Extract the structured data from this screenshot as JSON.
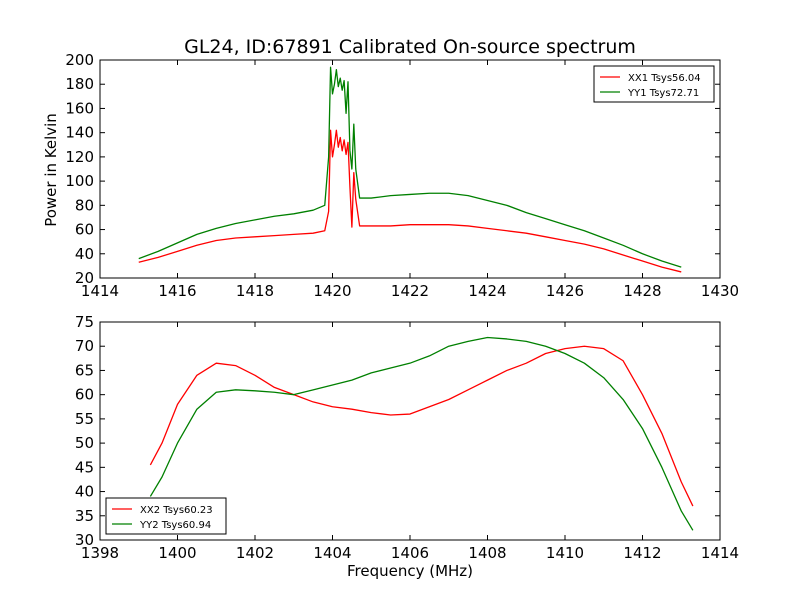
{
  "chart_data": [
    {
      "type": "line",
      "title": "GL24, ID:67891 Calibrated On-source spectrum",
      "xlabel": "",
      "ylabel": "Power in Kelvin",
      "xlim": [
        1414,
        1430
      ],
      "ylim": [
        20,
        200
      ],
      "xticks": [
        "1414",
        "1416",
        "1418",
        "1420",
        "1422",
        "1424",
        "1426",
        "1428",
        "1430"
      ],
      "yticks": [
        "20",
        "40",
        "60",
        "80",
        "100",
        "120",
        "140",
        "160",
        "180",
        "200"
      ],
      "legend_position": "top-right",
      "series": [
        {
          "name": "XX1 Tsys56.04",
          "color": "#ff0000",
          "points": [
            [
              1415.0,
              33
            ],
            [
              1415.5,
              37
            ],
            [
              1416.0,
              42
            ],
            [
              1416.5,
              47
            ],
            [
              1417.0,
              51
            ],
            [
              1417.5,
              53
            ],
            [
              1418.0,
              54
            ],
            [
              1418.5,
              55
            ],
            [
              1419.0,
              56
            ],
            [
              1419.5,
              57
            ],
            [
              1419.8,
              59
            ],
            [
              1419.9,
              75
            ],
            [
              1419.95,
              142
            ],
            [
              1420.0,
              120
            ],
            [
              1420.05,
              130
            ],
            [
              1420.1,
              142
            ],
            [
              1420.15,
              128
            ],
            [
              1420.2,
              136
            ],
            [
              1420.25,
              125
            ],
            [
              1420.3,
              134
            ],
            [
              1420.35,
              122
            ],
            [
              1420.4,
              132
            ],
            [
              1420.45,
              95
            ],
            [
              1420.5,
              62
            ],
            [
              1420.55,
              107
            ],
            [
              1420.6,
              85
            ],
            [
              1420.7,
              63
            ],
            [
              1421.0,
              63
            ],
            [
              1421.5,
              63
            ],
            [
              1422.0,
              64
            ],
            [
              1422.5,
              64
            ],
            [
              1423.0,
              64
            ],
            [
              1423.5,
              63
            ],
            [
              1424.0,
              61
            ],
            [
              1424.5,
              59
            ],
            [
              1425.0,
              57
            ],
            [
              1425.5,
              54
            ],
            [
              1426.0,
              51
            ],
            [
              1426.5,
              48
            ],
            [
              1427.0,
              44
            ],
            [
              1427.5,
              39
            ],
            [
              1428.0,
              34
            ],
            [
              1428.5,
              29
            ],
            [
              1429.0,
              25
            ]
          ]
        },
        {
          "name": "YY1 Tsys72.71",
          "color": "#008000",
          "points": [
            [
              1415.0,
              36
            ],
            [
              1415.5,
              42
            ],
            [
              1416.0,
              49
            ],
            [
              1416.5,
              56
            ],
            [
              1417.0,
              61
            ],
            [
              1417.5,
              65
            ],
            [
              1418.0,
              68
            ],
            [
              1418.5,
              71
            ],
            [
              1419.0,
              73
            ],
            [
              1419.5,
              76
            ],
            [
              1419.8,
              80
            ],
            [
              1419.9,
              120
            ],
            [
              1419.95,
              194
            ],
            [
              1420.0,
              172
            ],
            [
              1420.05,
              180
            ],
            [
              1420.1,
              192
            ],
            [
              1420.15,
              178
            ],
            [
              1420.2,
              185
            ],
            [
              1420.25,
              175
            ],
            [
              1420.3,
              183
            ],
            [
              1420.35,
              156
            ],
            [
              1420.4,
              182
            ],
            [
              1420.45,
              125
            ],
            [
              1420.5,
              110
            ],
            [
              1420.55,
              147
            ],
            [
              1420.6,
              110
            ],
            [
              1420.7,
              86
            ],
            [
              1421.0,
              86
            ],
            [
              1421.5,
              88
            ],
            [
              1422.0,
              89
            ],
            [
              1422.5,
              90
            ],
            [
              1423.0,
              90
            ],
            [
              1423.5,
              88
            ],
            [
              1424.0,
              84
            ],
            [
              1424.5,
              80
            ],
            [
              1425.0,
              74
            ],
            [
              1425.5,
              69
            ],
            [
              1426.0,
              64
            ],
            [
              1426.5,
              59
            ],
            [
              1427.0,
              53
            ],
            [
              1427.5,
              47
            ],
            [
              1428.0,
              40
            ],
            [
              1428.5,
              34
            ],
            [
              1429.0,
              29
            ]
          ]
        }
      ]
    },
    {
      "type": "line",
      "title": "",
      "xlabel": "Frequency (MHz)",
      "ylabel": "",
      "xlim": [
        1398,
        1414
      ],
      "ylim": [
        30,
        75
      ],
      "xticks": [
        "1398",
        "1400",
        "1402",
        "1404",
        "1406",
        "1408",
        "1410",
        "1412",
        "1414"
      ],
      "yticks": [
        "30",
        "35",
        "40",
        "45",
        "50",
        "55",
        "60",
        "65",
        "70",
        "75"
      ],
      "legend_position": "bottom-left",
      "series": [
        {
          "name": "XX2 Tsys60.23",
          "color": "#ff0000",
          "points": [
            [
              1399.3,
              45.5
            ],
            [
              1399.6,
              50
            ],
            [
              1400.0,
              58
            ],
            [
              1400.5,
              64
            ],
            [
              1401.0,
              66.5
            ],
            [
              1401.5,
              66
            ],
            [
              1402.0,
              64
            ],
            [
              1402.5,
              61.5
            ],
            [
              1403.0,
              60
            ],
            [
              1403.5,
              58.5
            ],
            [
              1404.0,
              57.5
            ],
            [
              1404.5,
              57
            ],
            [
              1405.0,
              56.3
            ],
            [
              1405.5,
              55.8
            ],
            [
              1406.0,
              56
            ],
            [
              1406.5,
              57.5
            ],
            [
              1407.0,
              59
            ],
            [
              1407.5,
              61
            ],
            [
              1408.0,
              63
            ],
            [
              1408.5,
              65
            ],
            [
              1409.0,
              66.5
            ],
            [
              1409.5,
              68.5
            ],
            [
              1410.0,
              69.5
            ],
            [
              1410.5,
              70
            ],
            [
              1411.0,
              69.5
            ],
            [
              1411.5,
              67
            ],
            [
              1412.0,
              60
            ],
            [
              1412.5,
              52
            ],
            [
              1413.0,
              42
            ],
            [
              1413.3,
              37
            ]
          ]
        },
        {
          "name": "YY2 Tsys60.94",
          "color": "#008000",
          "points": [
            [
              1399.3,
              39
            ],
            [
              1399.6,
              43
            ],
            [
              1400.0,
              50
            ],
            [
              1400.5,
              57
            ],
            [
              1401.0,
              60.5
            ],
            [
              1401.5,
              61
            ],
            [
              1402.0,
              60.8
            ],
            [
              1402.5,
              60.5
            ],
            [
              1403.0,
              60
            ],
            [
              1403.5,
              61
            ],
            [
              1404.0,
              62
            ],
            [
              1404.5,
              63
            ],
            [
              1405.0,
              64.5
            ],
            [
              1405.5,
              65.5
            ],
            [
              1406.0,
              66.5
            ],
            [
              1406.5,
              68
            ],
            [
              1407.0,
              70
            ],
            [
              1407.5,
              71
            ],
            [
              1408.0,
              71.8
            ],
            [
              1408.5,
              71.5
            ],
            [
              1409.0,
              71
            ],
            [
              1409.5,
              70
            ],
            [
              1410.0,
              68.5
            ],
            [
              1410.5,
              66.5
            ],
            [
              1411.0,
              63.5
            ],
            [
              1411.5,
              59
            ],
            [
              1412.0,
              53
            ],
            [
              1412.5,
              45
            ],
            [
              1413.0,
              36
            ],
            [
              1413.3,
              32
            ]
          ]
        }
      ]
    }
  ]
}
